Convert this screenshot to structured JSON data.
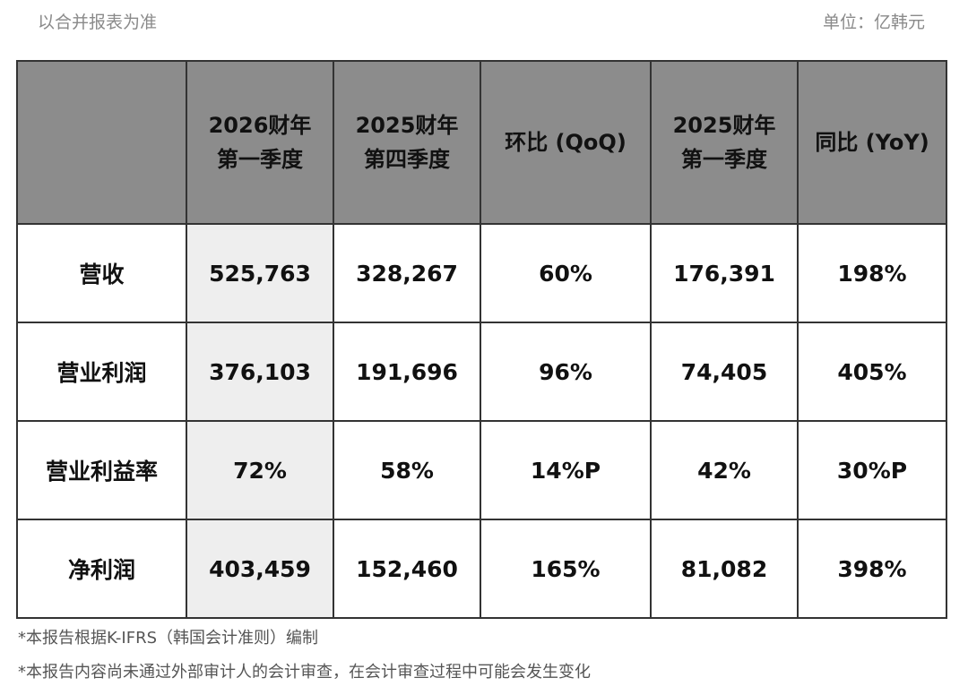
{
  "header_note": "以合并报表为准",
  "unit": "单位：亿韩元",
  "table": {
    "columns": [
      "",
      "2026财年\n第一季度",
      "2025财年\n第四季度",
      "环比 (QoQ)",
      "2025财年\n第一季度",
      "同比 (YoY)"
    ],
    "column_lines": [
      [
        "",
        ""
      ],
      [
        "2026财年",
        "第一季度"
      ],
      [
        "2025财年",
        "第四季度"
      ],
      [
        "环比 (QoQ)"
      ],
      [
        "2025财年",
        "第一季度"
      ],
      [
        "同比 (YoY)"
      ]
    ],
    "rows": [
      [
        "营收",
        "525,763",
        "328,267",
        "60%",
        "176,391",
        "198%"
      ],
      [
        "营业利润",
        "376,103",
        "191,696",
        "96%",
        "74,405",
        "405%"
      ],
      [
        "营业利益率",
        "72%",
        "58%",
        "14%P",
        "42%",
        "30%P"
      ],
      [
        "净利润",
        "403,459",
        "152,460",
        "165%",
        "81,082",
        "398%"
      ]
    ]
  },
  "footnotes": [
    "*本报告根据K-IFRS（韩国会计准则）编制",
    "*本报告内容尚未通过外部审计人的会计审查，在会计审查过程中可能会发生变化"
  ],
  "colors": {
    "header_bg": "#8c8c8c",
    "highlight_col": "#eeeeee",
    "border": "#333333"
  }
}
